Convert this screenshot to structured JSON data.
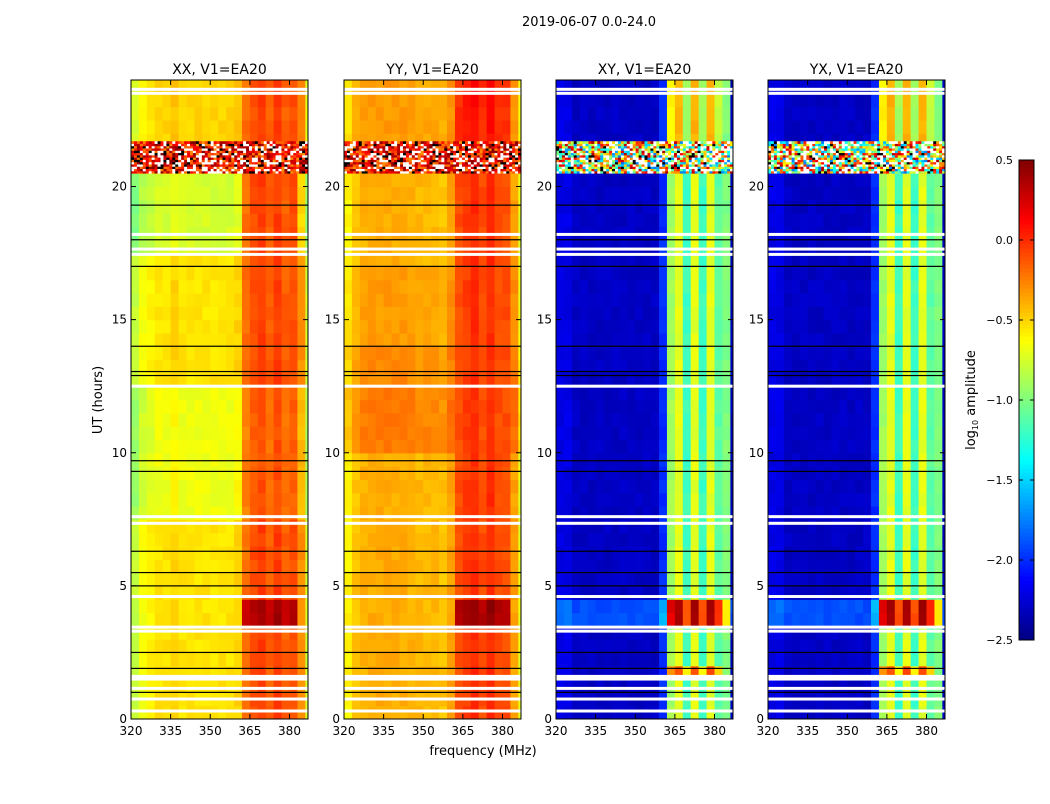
{
  "chart_data": {
    "type": "heatmap",
    "title": "2019-06-07 0.0-24.0",
    "xlabel": "frequency (MHz)",
    "ylabel": "UT (hours)",
    "xlim": [
      320,
      387
    ],
    "ylim": [
      0,
      24
    ],
    "xticks": [
      "320",
      "335",
      "350",
      "365",
      "380"
    ],
    "yticks": [
      "0",
      "5",
      "10",
      "15",
      "20"
    ],
    "colorbar": {
      "label_main": "log",
      "label_sub": "10",
      "label_rest": " amplitude",
      "range": [
        -2.5,
        0.5
      ],
      "ticks": [
        "0.5",
        "0.0",
        "−0.5",
        "−1.0",
        "−1.5",
        "−2.0",
        "−2.5"
      ],
      "tick_values": [
        0.5,
        0.0,
        -0.5,
        -1.0,
        -1.5,
        -2.0,
        -2.5
      ],
      "colormap": "jet"
    },
    "freq_bin_start": 320,
    "freq_bin_width": 3,
    "time_bin_width": 0.5,
    "rfi_interval": [
      20.5,
      21.7
    ],
    "white_flag_times": [
      0.3,
      0.75,
      1.15,
      1.5,
      1.6,
      3.3,
      3.45,
      4.6,
      7.35,
      7.6,
      12.5,
      17.45,
      17.65,
      18.2,
      23.5,
      23.65
    ],
    "dark_line_times": [
      1.0,
      1.9,
      2.5,
      5.0,
      5.5,
      6.3,
      9.3,
      9.7,
      12.9,
      13.05,
      14.0,
      17.0,
      18.0,
      19.3
    ],
    "panels": [
      {
        "title": "XX, V1=EA20",
        "freq_profile": [
          -0.8,
          -0.65,
          -0.6,
          -0.55,
          -0.55,
          -0.5,
          -0.55,
          -0.55,
          -0.55,
          -0.55,
          -0.55,
          -0.55,
          -0.55,
          -0.5,
          -0.2,
          -0.1,
          -0.05,
          -0.15,
          -0.05,
          -0.15,
          -0.1,
          -0.3,
          -0.75
        ],
        "time_segments": [
          {
            "from": 3.5,
            "to": 4.5,
            "low": 0,
            "band": 0.45
          },
          {
            "from": 7.5,
            "to": 12.5,
            "low": -0.12,
            "band": -0.05
          },
          {
            "from": 17.5,
            "to": 20.5,
            "low": -0.2,
            "band": 0
          },
          {
            "from": 21.5,
            "to": 24,
            "low": 0.05,
            "band": 0
          }
        ],
        "rfi_style": "parallel"
      },
      {
        "title": "YY, V1=EA20",
        "freq_profile": [
          -0.6,
          -0.45,
          -0.4,
          -0.38,
          -0.38,
          -0.38,
          -0.38,
          -0.38,
          -0.4,
          -0.42,
          -0.42,
          -0.42,
          -0.45,
          -0.35,
          -0.1,
          -0.05,
          0.0,
          -0.1,
          0.0,
          -0.1,
          -0.1,
          -0.35,
          -0.7
        ],
        "time_segments": [
          {
            "from": 3.5,
            "to": 4.5,
            "low": 0,
            "band": 0.45
          },
          {
            "from": 10,
            "to": 12.5,
            "low": 0.15,
            "band": 0
          },
          {
            "from": 12.5,
            "to": 14,
            "low": 0.1,
            "band": 0
          },
          {
            "from": 14,
            "to": 17,
            "low": 0.05,
            "band": 0
          },
          {
            "from": 21.5,
            "to": 24,
            "low": 0.05,
            "band": 0.1
          }
        ],
        "rfi_style": "parallel"
      },
      {
        "title": "XY, V1=EA20",
        "freq_profile": [
          -2.2,
          -2.2,
          -2.3,
          -2.3,
          -2.3,
          -2.3,
          -2.3,
          -2.3,
          -2.3,
          -2.3,
          -2.3,
          -2.3,
          -2.3,
          -2.0,
          -0.9,
          -0.7,
          -1.2,
          -0.7,
          -1.2,
          -0.7,
          -1.1,
          -1.0,
          -2.3
        ],
        "time_segments": [
          {
            "from": 1.5,
            "to": 2.0,
            "low": 0,
            "band": 0.6
          },
          {
            "from": 3.5,
            "to": 4.5,
            "low": 0.4,
            "band": 1.1
          },
          {
            "from": 20.5,
            "to": 24,
            "low": 0,
            "band": 0.3
          }
        ],
        "rfi_style": "cross"
      },
      {
        "title": "YX, V1=EA20",
        "freq_profile": [
          -2.2,
          -2.2,
          -2.3,
          -2.3,
          -2.3,
          -2.3,
          -2.3,
          -2.3,
          -2.3,
          -2.3,
          -2.3,
          -2.3,
          -2.3,
          -2.0,
          -0.9,
          -0.7,
          -1.2,
          -0.7,
          -1.2,
          -0.7,
          -1.1,
          -1.0,
          -2.3
        ],
        "time_segments": [
          {
            "from": 1.5,
            "to": 2.0,
            "low": 0,
            "band": 0.6
          },
          {
            "from": 3.5,
            "to": 4.5,
            "low": 0.4,
            "band": 1.1
          },
          {
            "from": 20.5,
            "to": 24,
            "low": 0,
            "band": 0.3
          }
        ],
        "rfi_style": "cross"
      }
    ]
  }
}
